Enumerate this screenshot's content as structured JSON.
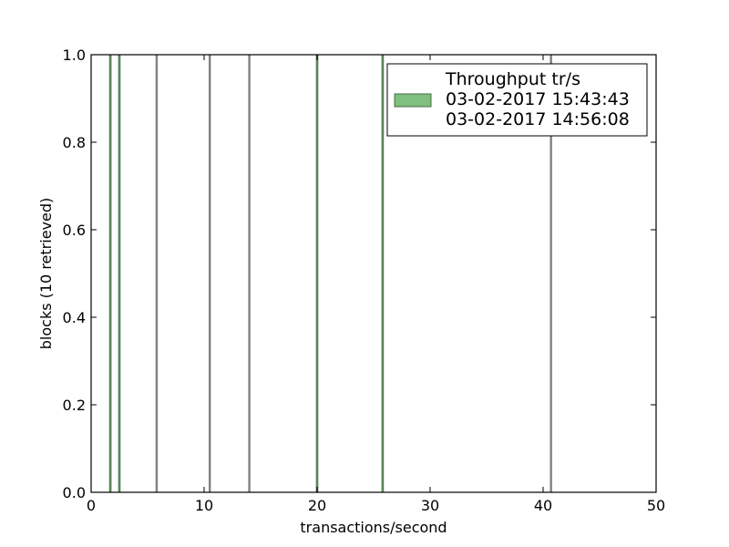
{
  "chart_data": {
    "type": "bar",
    "xlabel": "transactions/second",
    "ylabel": "blocks (10 retrieved)",
    "xlim": [
      0,
      50
    ],
    "ylim": [
      0,
      1.0
    ],
    "x_ticks": [
      "0",
      "10",
      "20",
      "30",
      "40",
      "50"
    ],
    "y_ticks": [
      "0.0",
      "0.2",
      "0.4",
      "0.6",
      "0.8",
      "1.0"
    ],
    "grid": false,
    "legend": {
      "placement": "top-right",
      "title": "Throughput tr/s",
      "entries": [
        "03-02-2017 15:43:43",
        "03-02-2017 14:56:08"
      ]
    },
    "series": [
      {
        "name": "03-02-2017 15:43:43",
        "color": "#7fbf7f",
        "edge": "#4a6b4a",
        "x": [
          1.7,
          2.5,
          20.0,
          25.8
        ],
        "values": [
          1,
          1,
          1,
          1
        ]
      },
      {
        "name": "03-02-2017 14:56:08",
        "color": "#808080",
        "edge": "#808080",
        "x": [
          5.8,
          10.5,
          14.0,
          40.7
        ],
        "values": [
          1,
          1,
          1,
          1
        ]
      }
    ]
  }
}
